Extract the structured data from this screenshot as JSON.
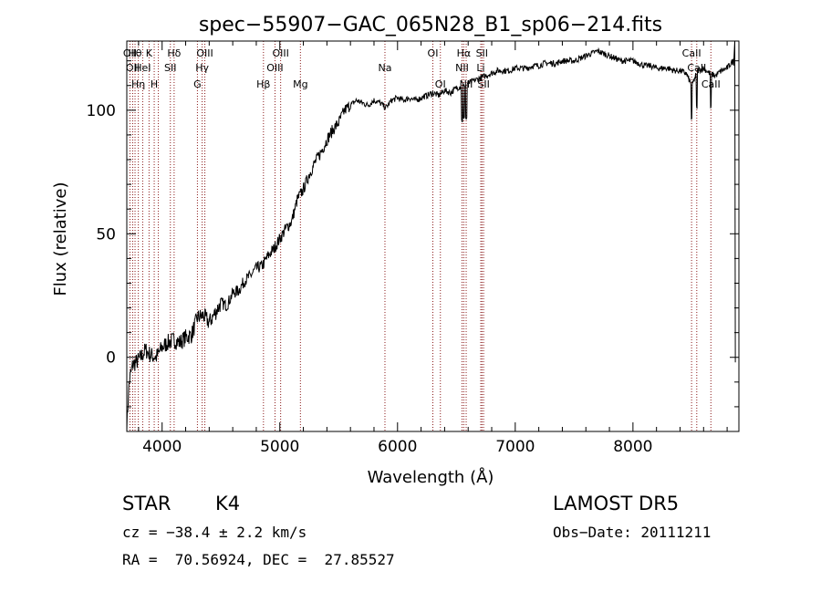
{
  "chart_data": {
    "type": "line",
    "title": "spec−55907−GAC_065N28_B1_sp06−214.fits",
    "xlabel": "Wavelength (Å)",
    "ylabel": "Flux (relative)",
    "xlim": [
      3700,
      8900
    ],
    "ylim": [
      -30,
      128
    ],
    "x_ticks": [
      4000,
      5000,
      6000,
      7000,
      8000
    ],
    "y_ticks": [
      0,
      50,
      100
    ],
    "grid": false,
    "series": [
      {
        "x": [
          3700,
          3720,
          3750,
          3780,
          3820,
          3860,
          3900,
          3950,
          4000,
          4050,
          4100,
          4150,
          4200,
          4250,
          4300,
          4350,
          4400,
          4450,
          4500,
          4550,
          4600,
          4650,
          4700,
          4750,
          4800,
          4850,
          4900,
          4950,
          5000,
          5050,
          5100,
          5150,
          5200,
          5250,
          5300,
          5350,
          5400,
          5450,
          5500,
          5550,
          5600,
          5650,
          5700,
          5750,
          5800,
          5850,
          5900,
          5950,
          6000,
          6050,
          6100,
          6150,
          6200,
          6250,
          6300,
          6350,
          6400,
          6450,
          6500,
          6550,
          6600,
          6650,
          6700,
          6750,
          6800,
          6850,
          6900,
          6950,
          7000,
          7050,
          7100,
          7150,
          7200,
          7250,
          7300,
          7350,
          7400,
          7450,
          7500,
          7550,
          7600,
          7650,
          7700,
          7750,
          7800,
          7850,
          7900,
          7950,
          8000,
          8050,
          8100,
          8150,
          8200,
          8250,
          8300,
          8350,
          8400,
          8450,
          8500,
          8550,
          8600,
          8650,
          8700,
          8750,
          8800,
          8850,
          8870
        ],
        "y": [
          -28,
          -10,
          -3,
          -2,
          0,
          3,
          1,
          0,
          4,
          6,
          7,
          6,
          8,
          9,
          16,
          17,
          14,
          18,
          22,
          21,
          26,
          27,
          31,
          33,
          36,
          37,
          41,
          44,
          48,
          52,
          55,
          64,
          68,
          74,
          79,
          83,
          88,
          92,
          95,
          100,
          102,
          104,
          103,
          102,
          104,
          103,
          101,
          104,
          105,
          104,
          105,
          104,
          105,
          106,
          107,
          106,
          108,
          107,
          109,
          110,
          111,
          112,
          113,
          114,
          115,
          116,
          116,
          116,
          117,
          117,
          117,
          118,
          118,
          119,
          119,
          119,
          120,
          120,
          120,
          121,
          122,
          123,
          124,
          123,
          122,
          121,
          120,
          120,
          120,
          119,
          118,
          118,
          117,
          117,
          117,
          116,
          116,
          115,
          110,
          116,
          117,
          115,
          114,
          116,
          117,
          120,
          -2
        ]
      }
    ],
    "line_markers": [
      {
        "wavelength": 3727,
        "labels": [
          "OII"
        ]
      },
      {
        "wavelength": 3750,
        "labels": [
          "",
          "OII"
        ]
      },
      {
        "wavelength": 3770,
        "labels": [
          "Hθ"
        ]
      },
      {
        "wavelength": 3798,
        "labels": [
          "",
          "",
          "Hη"
        ]
      },
      {
        "wavelength": 3835,
        "labels": [
          "",
          "HeI"
        ]
      },
      {
        "wavelength": 3889,
        "labels": [
          "K"
        ]
      },
      {
        "wavelength": 3933,
        "labels": [
          "",
          "",
          "H"
        ]
      },
      {
        "wavelength": 3968,
        "labels": []
      },
      {
        "wavelength": 4070,
        "labels": [
          "",
          "SII"
        ]
      },
      {
        "wavelength": 4102,
        "labels": [
          "Hδ"
        ]
      },
      {
        "wavelength": 4300,
        "labels": [
          "",
          "",
          "G"
        ]
      },
      {
        "wavelength": 4340,
        "labels": [
          "",
          "Hγ"
        ]
      },
      {
        "wavelength": 4363,
        "labels": [
          "OIII"
        ]
      },
      {
        "wavelength": 4861,
        "labels": [
          "",
          "",
          "Hβ"
        ]
      },
      {
        "wavelength": 4959,
        "labels": [
          "",
          "OIII"
        ]
      },
      {
        "wavelength": 5007,
        "labels": [
          "OIII"
        ]
      },
      {
        "wavelength": 5175,
        "labels": [
          "",
          "",
          "Mg"
        ]
      },
      {
        "wavelength": 5893,
        "labels": [
          "",
          "Na"
        ]
      },
      {
        "wavelength": 6300,
        "labels": [
          "OI"
        ]
      },
      {
        "wavelength": 6364,
        "labels": [
          "",
          "",
          "OI"
        ]
      },
      {
        "wavelength": 6548,
        "labels": [
          "",
          "NII"
        ]
      },
      {
        "wavelength": 6563,
        "labels": [
          "Hα"
        ]
      },
      {
        "wavelength": 6583,
        "labels": [
          "",
          "",
          "NII"
        ]
      },
      {
        "wavelength": 6707,
        "labels": [
          "",
          "Li"
        ]
      },
      {
        "wavelength": 6717,
        "labels": [
          "SII"
        ]
      },
      {
        "wavelength": 6731,
        "labels": [
          "",
          "",
          "SII"
        ]
      },
      {
        "wavelength": 8498,
        "labels": [
          "CaII"
        ]
      },
      {
        "wavelength": 8542,
        "labels": [
          "",
          "CaII"
        ]
      },
      {
        "wavelength": 8662,
        "labels": [
          "",
          "",
          "CaII"
        ]
      }
    ],
    "colors": {
      "spectrum": "#000000",
      "marker": "#8b1a1a",
      "axes": "#000000"
    }
  },
  "info": {
    "class": "STAR",
    "subclass": "K4",
    "survey": "LAMOST DR5",
    "cz": "cz = −38.4 ± 2.2 km/s",
    "obs_date": "Obs−Date: 20111211",
    "coords": "RA =  70.56924, DEC =  27.85527"
  }
}
